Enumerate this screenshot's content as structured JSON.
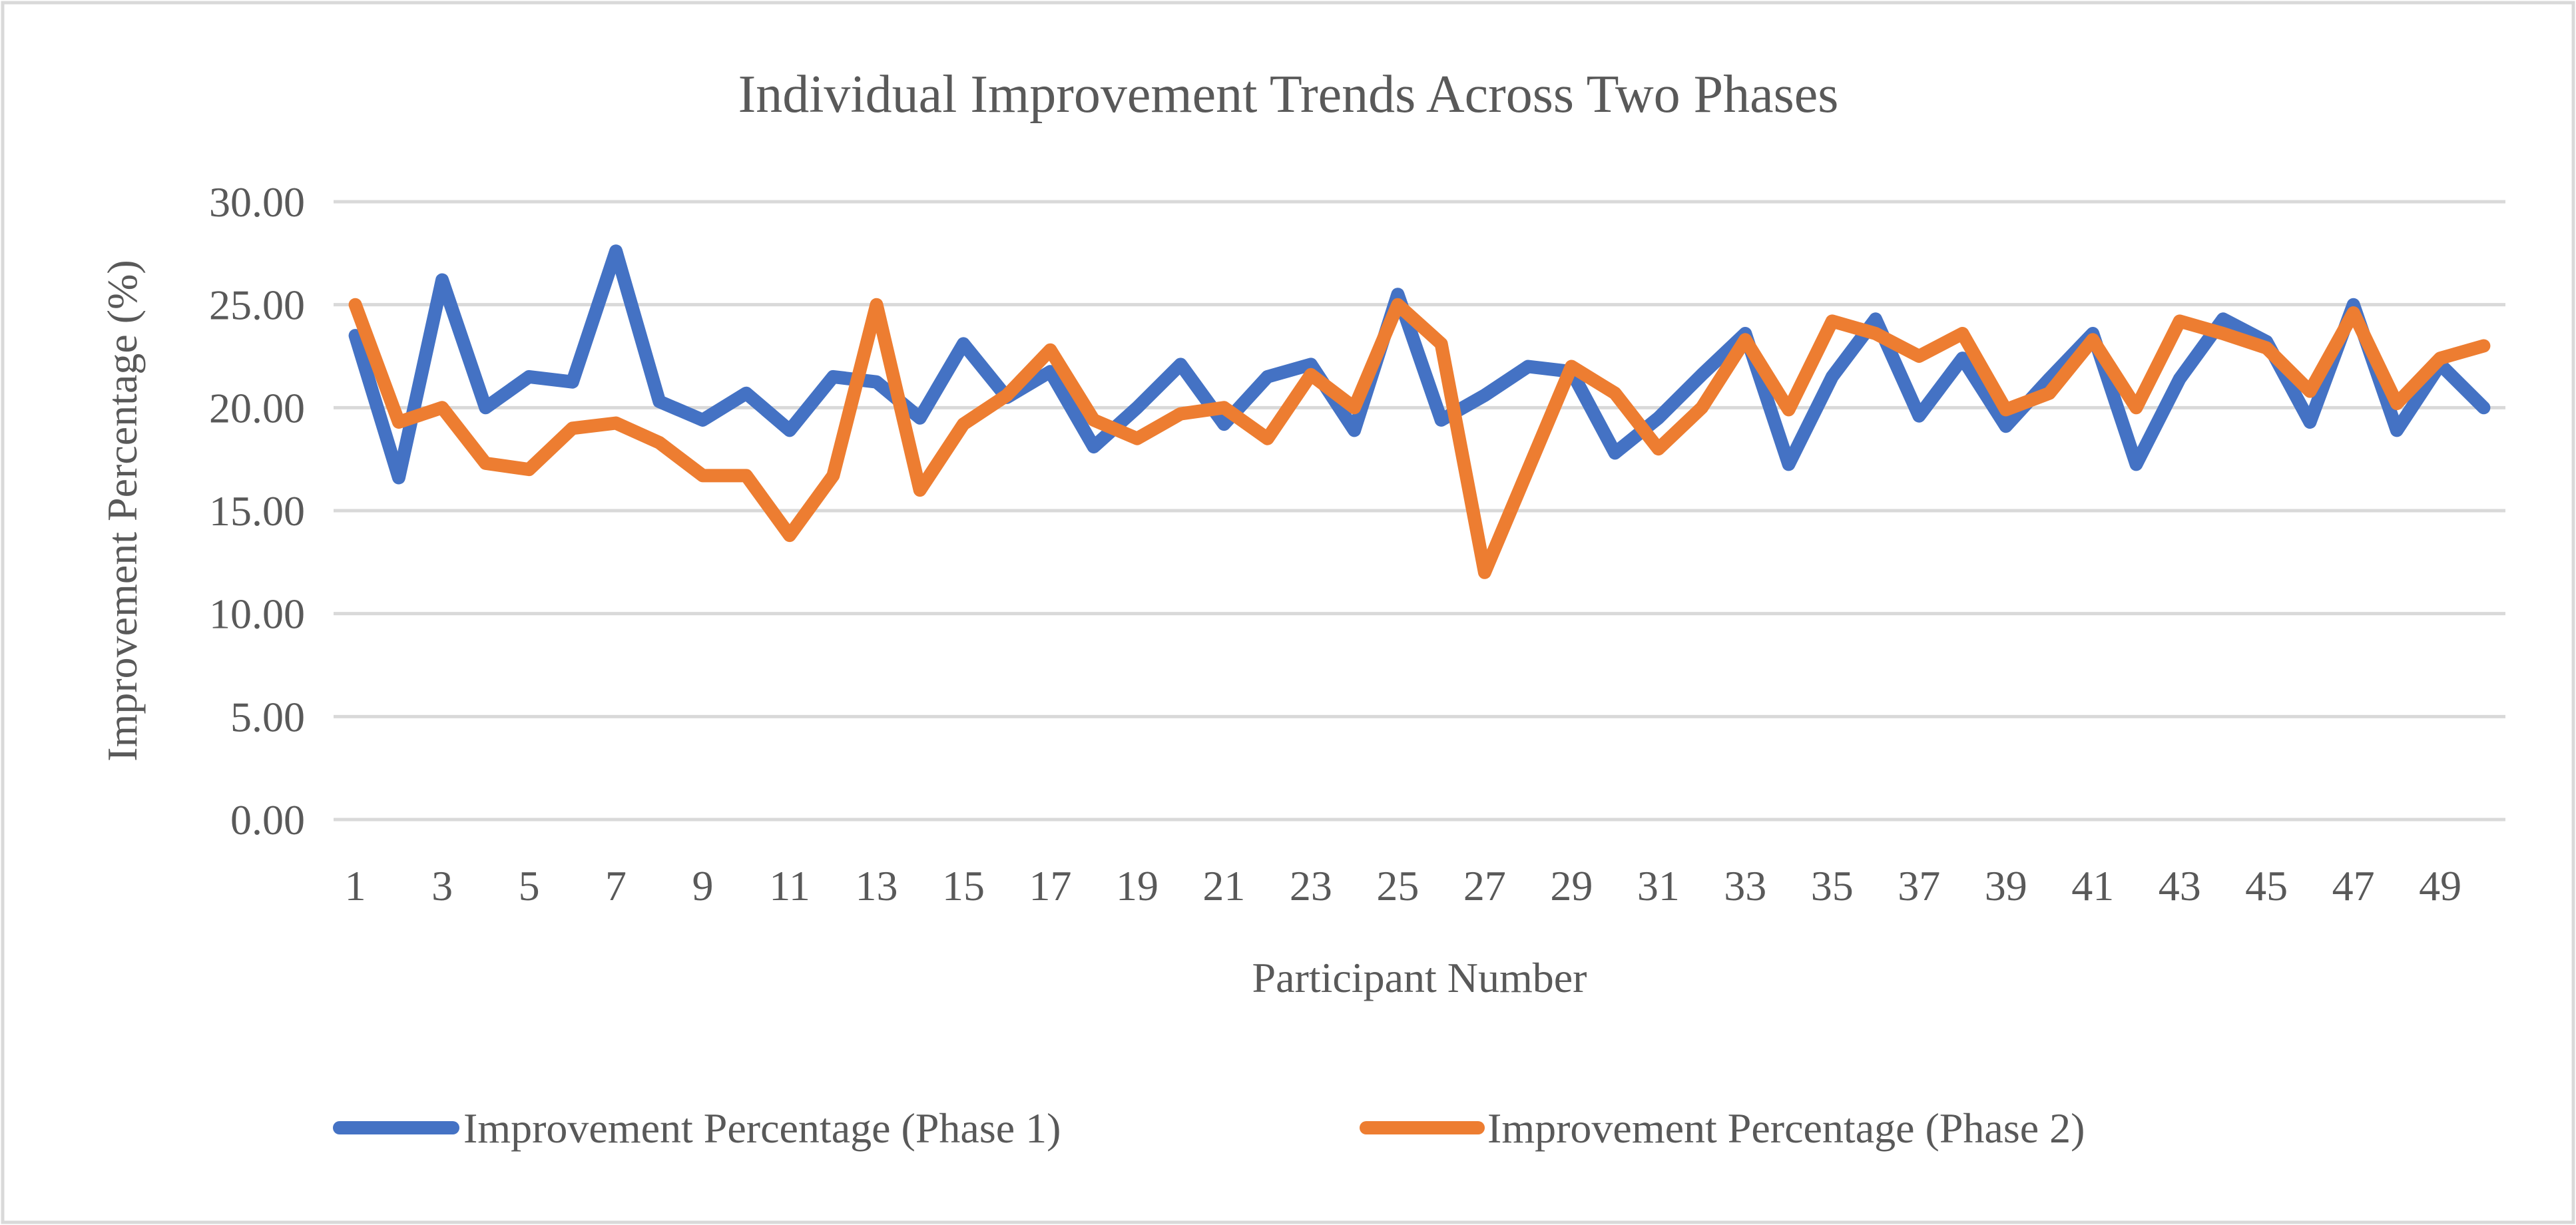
{
  "chart_data": {
    "type": "line",
    "title": "Individual Improvement Trends Across Two Phases",
    "xlabel": "Participant Number",
    "ylabel": "Improvement Percentage (%)",
    "ylim": [
      0,
      30
    ],
    "yticks": [
      "0.00",
      "5.00",
      "10.00",
      "15.00",
      "20.00",
      "25.00",
      "30.00"
    ],
    "ytick_values": [
      0,
      5,
      10,
      15,
      20,
      25,
      30
    ],
    "grid": true,
    "legend_position": "bottom",
    "x": [
      1,
      2,
      3,
      4,
      5,
      6,
      7,
      8,
      9,
      10,
      11,
      12,
      13,
      14,
      15,
      16,
      17,
      18,
      19,
      20,
      21,
      22,
      23,
      24,
      25,
      26,
      27,
      28,
      29,
      30,
      31,
      32,
      33,
      34,
      35,
      36,
      37,
      38,
      39,
      40,
      41,
      42,
      43,
      44,
      45,
      46,
      47,
      48,
      49,
      50
    ],
    "xtick_labels": [
      "1",
      "3",
      "5",
      "7",
      "9",
      "11",
      "13",
      "15",
      "17",
      "19",
      "21",
      "23",
      "25",
      "27",
      "29",
      "31",
      "33",
      "35",
      "37",
      "39",
      "41",
      "43",
      "45",
      "47",
      "49"
    ],
    "series": [
      {
        "name": "Improvement Percentage (Phase 1)",
        "color": "#4472C4",
        "values": [
          23.5,
          16.6,
          26.2,
          20.0,
          21.5,
          21.25,
          27.6,
          20.3,
          19.4,
          20.7,
          18.9,
          21.5,
          21.25,
          19.5,
          23.1,
          20.5,
          21.75,
          18.1,
          20.0,
          22.1,
          19.2,
          21.5,
          22.1,
          18.9,
          25.5,
          19.4,
          20.6,
          22.0,
          21.75,
          17.8,
          19.5,
          21.6,
          23.6,
          17.25,
          21.5,
          24.3,
          19.6,
          22.4,
          19.1,
          21.4,
          23.6,
          17.25,
          21.4,
          24.3,
          23.2,
          19.3,
          25.0,
          18.9,
          22.1,
          20.0
        ]
      },
      {
        "name": "Improvement Percentage (Phase 2)",
        "color": "#ED7D31",
        "values": [
          25.0,
          19.3,
          20.0,
          17.3,
          17.0,
          19.0,
          19.25,
          18.3,
          16.7,
          16.7,
          13.8,
          16.7,
          25.0,
          16.0,
          19.2,
          20.6,
          22.8,
          19.4,
          18.5,
          19.7,
          20.0,
          18.5,
          21.6,
          20.0,
          25.0,
          23.1,
          12.0,
          17.0,
          22.0,
          20.7,
          18.0,
          20.0,
          23.3,
          19.9,
          24.2,
          23.6,
          22.5,
          23.6,
          19.9,
          20.7,
          23.3,
          20.0,
          24.2,
          23.6,
          22.9,
          20.8,
          24.6,
          20.2,
          22.4,
          23.0
        ]
      }
    ]
  }
}
